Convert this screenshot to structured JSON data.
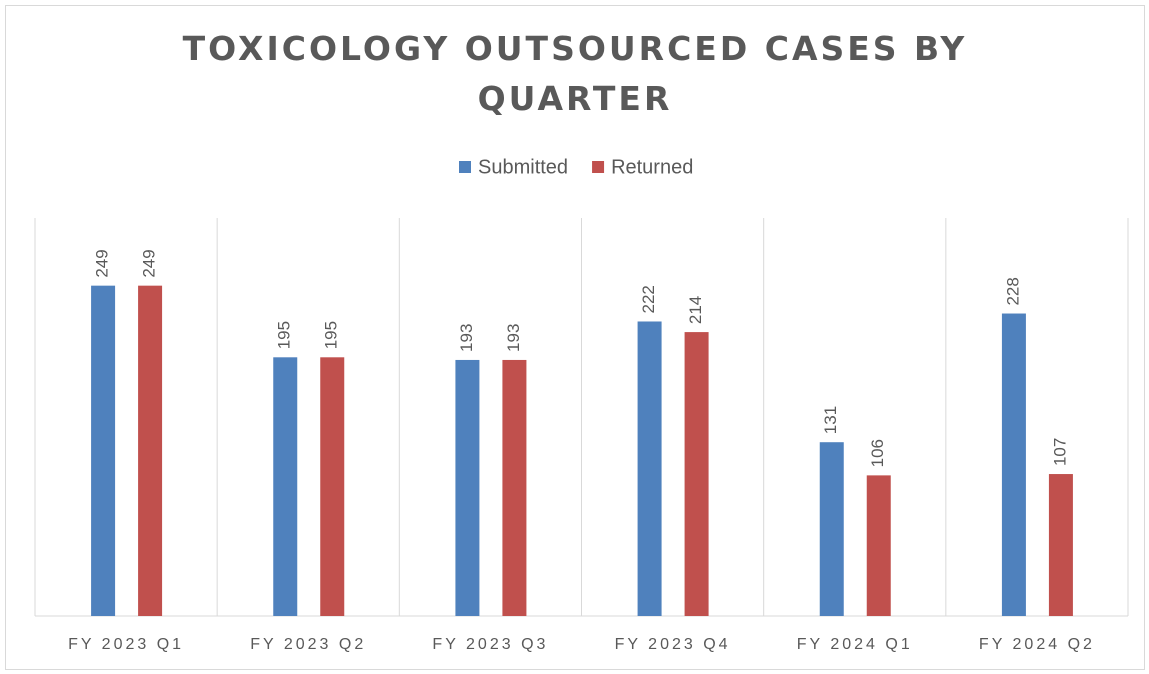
{
  "chart_data": {
    "type": "bar",
    "title": "TOXICOLOGY OUTSOURCED CASES BY QUARTER",
    "categories": [
      "FY 2023 Q1",
      "FY 2023 Q2",
      "FY 2023 Q3",
      "FY 2023 Q4",
      "FY 2024 Q1",
      "FY 2024 Q2"
    ],
    "series": [
      {
        "name": "Submitted",
        "color": "#4f81bd",
        "values": [
          249,
          195,
          193,
          222,
          131,
          228
        ]
      },
      {
        "name": "Returned",
        "color": "#c0504d",
        "values": [
          249,
          195,
          193,
          214,
          106,
          107
        ]
      }
    ],
    "ylim": [
      0,
      300
    ],
    "legend": "top",
    "data_labels": true
  }
}
